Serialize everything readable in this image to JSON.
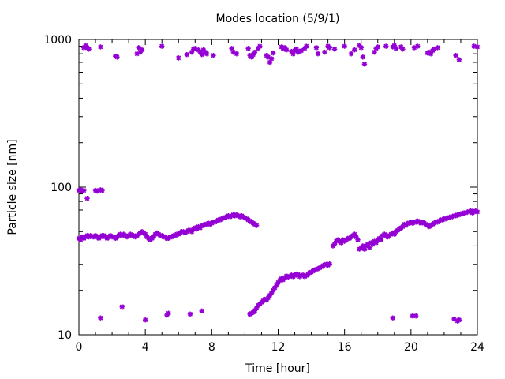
{
  "chart_data": {
    "type": "scatter",
    "title": "Modes location (5/9/1)",
    "xlabel": "Time [hour]",
    "ylabel": "Particle size [nm]",
    "xlim": [
      0,
      24
    ],
    "ylim": [
      10,
      1000
    ],
    "yscale": "log",
    "grid": false,
    "legend": "none",
    "x_ticks": [
      0,
      4,
      8,
      12,
      16,
      20,
      24
    ],
    "x_tick_labels": [
      "0",
      "4",
      "8",
      "12",
      "16",
      "20",
      "24"
    ],
    "y_ticks": [
      10,
      100,
      1000
    ],
    "y_tick_labels": [
      "10",
      "100",
      "1000"
    ],
    "marker_color": "#9400d3",
    "series": [
      {
        "x": [
          0.0,
          0.1,
          0.2,
          0.3,
          0.4,
          0.5,
          0.6,
          0.7,
          0.8,
          0.9,
          1.0,
          1.1,
          1.2,
          1.3,
          1.4,
          1.5,
          1.6,
          1.7,
          1.8,
          1.9,
          2.0,
          2.1,
          2.2,
          2.3,
          2.4,
          2.5,
          2.6,
          2.7,
          2.8,
          2.9,
          3.0,
          3.1,
          3.2,
          3.3,
          3.4,
          3.5,
          3.6,
          3.7,
          3.8,
          3.9,
          4.0,
          4.1,
          4.2,
          4.3,
          4.4,
          4.5,
          4.6,
          4.7,
          4.8,
          4.9,
          5.0,
          5.1,
          5.2,
          5.3,
          5.4,
          5.5,
          5.6,
          5.7,
          5.8,
          5.9,
          6.0,
          6.1,
          6.2,
          6.3,
          6.4,
          6.5,
          6.6,
          6.7,
          6.8,
          6.9,
          7.0,
          7.1,
          7.2,
          7.3,
          7.4,
          7.5,
          7.6,
          7.7,
          7.8,
          7.9,
          8.0,
          8.1,
          8.2,
          8.3,
          8.4,
          8.5,
          8.6,
          8.7,
          8.8,
          8.9,
          9.0,
          9.1,
          9.2,
          9.3,
          9.4,
          9.5,
          9.6,
          9.7,
          9.8,
          9.9,
          10.0,
          10.1,
          10.2,
          10.3,
          10.4,
          10.5,
          10.6,
          10.7
        ],
        "y": [
          45,
          44,
          46,
          45,
          46,
          47,
          46,
          47,
          46,
          46,
          47,
          46,
          45,
          46,
          47,
          47,
          46,
          45,
          46,
          47,
          46,
          46,
          45,
          46,
          47,
          48,
          47,
          48,
          47,
          46,
          47,
          48,
          47,
          47,
          46,
          47,
          48,
          49,
          50,
          49,
          48,
          46,
          45,
          44,
          45,
          46,
          48,
          49,
          48,
          47,
          47,
          46,
          46,
          45,
          45,
          46,
          46,
          47,
          47,
          48,
          48,
          49,
          50,
          50,
          49,
          50,
          51,
          51,
          50,
          52,
          53,
          52,
          54,
          53,
          55,
          55,
          56,
          56,
          57,
          56,
          57,
          58,
          58,
          59,
          60,
          60,
          61,
          62,
          62,
          63,
          64,
          63,
          64,
          65,
          64,
          65,
          64,
          63,
          64,
          63,
          62,
          61,
          60,
          59,
          58,
          57,
          56,
          55
        ]
      },
      {
        "x": [
          10.3,
          10.4,
          10.5,
          10.6,
          10.7,
          10.8,
          10.9,
          11.0,
          11.1,
          11.2,
          11.3,
          11.4,
          11.5,
          11.6,
          11.7,
          11.8,
          11.9,
          12.0,
          12.1,
          12.2,
          12.3,
          12.4,
          12.5,
          12.6,
          12.7,
          12.8,
          12.9,
          13.0,
          13.1,
          13.2,
          13.3,
          13.4,
          13.5,
          13.6,
          13.7,
          13.8,
          13.9,
          14.0,
          14.1,
          14.2,
          14.3,
          14.4,
          14.5,
          14.6,
          14.7,
          14.8,
          14.9,
          15.0,
          15.1
        ],
        "y": [
          13.8,
          14,
          14.2,
          14.6,
          15.2,
          15.8,
          16.2,
          16.6,
          17,
          17.4,
          17.2,
          17.8,
          18.5,
          19.2,
          20,
          20.8,
          21.6,
          22.6,
          23.4,
          24,
          23.6,
          24.4,
          25,
          24.6,
          24.8,
          25.4,
          24.8,
          25.2,
          25.8,
          25.6,
          24.8,
          25.2,
          25.4,
          24.8,
          25.2,
          25.6,
          26.4,
          26.6,
          27,
          27.4,
          27.8,
          28,
          28.4,
          28.8,
          29.4,
          29.8,
          30,
          29.6,
          30.2
        ]
      },
      {
        "x": [
          15.3,
          15.4,
          15.5,
          15.6,
          15.7,
          15.8,
          15.9,
          16.0,
          16.1,
          16.2,
          16.3,
          16.4,
          16.5,
          16.6,
          16.7,
          16.8,
          16.9,
          17.0,
          17.1,
          17.2,
          17.3,
          17.4,
          17.5,
          17.6,
          17.7,
          17.8,
          17.9,
          18.0,
          18.1,
          18.2,
          18.3,
          18.4,
          18.5,
          18.6,
          18.7,
          18.8,
          18.9,
          19.0,
          19.1,
          19.2,
          19.3,
          19.4,
          19.5,
          19.6,
          19.7,
          19.8,
          19.9,
          20.0,
          20.1,
          20.2,
          20.3,
          20.4,
          20.5,
          20.6,
          20.7,
          20.8,
          20.9,
          21.0,
          21.1,
          21.2,
          21.3,
          21.4,
          21.5,
          21.6,
          21.7,
          21.8,
          21.9,
          22.0,
          22.1,
          22.2,
          22.3,
          22.4,
          22.5,
          22.6,
          22.7,
          22.8,
          22.9,
          23.0,
          23.1,
          23.2,
          23.3,
          23.4,
          23.5,
          23.6,
          23.7,
          23.8,
          23.9,
          24.0
        ],
        "y": [
          40,
          41,
          43,
          44,
          43,
          42,
          44,
          43,
          44,
          45,
          45,
          46,
          47,
          48,
          46,
          44,
          38,
          39,
          40,
          38,
          40,
          41,
          39,
          42,
          41,
          43,
          42,
          44,
          45,
          44,
          47,
          48,
          47,
          46,
          47,
          48,
          49,
          48,
          50,
          51,
          52,
          53,
          54,
          56,
          55,
          57,
          57,
          58,
          57,
          58,
          58,
          59,
          58,
          57,
          58,
          57,
          56,
          55,
          54,
          55,
          56,
          57,
          58,
          58,
          59,
          60,
          60,
          61,
          61,
          62,
          62,
          63,
          63,
          64,
          64,
          65,
          65,
          66,
          66,
          67,
          67,
          68,
          68,
          69,
          67,
          68,
          69,
          68
        ]
      },
      {
        "x": [
          0.0,
          0.1,
          0.2,
          0.3,
          0.5,
          1.0,
          1.1,
          1.2,
          1.3,
          1.4
        ],
        "y": [
          95,
          96,
          94,
          95,
          84,
          95,
          94,
          95,
          96,
          95
        ]
      },
      {
        "x": [
          1.3,
          2.6,
          4.0,
          5.3,
          5.4,
          6.7,
          7.4,
          10.3,
          18.9,
          20.1,
          20.3,
          22.6,
          22.8,
          22.9
        ],
        "y": [
          13,
          15.5,
          12.6,
          13.6,
          14,
          13.8,
          14.5,
          13.8,
          13,
          13.4,
          13.4,
          12.8,
          12.4,
          12.6
        ]
      },
      {
        "x": [
          0.3,
          0.4,
          0.5,
          0.6,
          1.3,
          2.2,
          2.3,
          3.5,
          3.6,
          3.7,
          3.8,
          5.0,
          6.0,
          6.5,
          6.8,
          6.9,
          7.0,
          7.2,
          7.3,
          7.4,
          7.5,
          7.6,
          7.7,
          8.1,
          9.2,
          9.3,
          9.5,
          10.2,
          10.3,
          10.4,
          10.5,
          10.6,
          10.8,
          10.9,
          11.3,
          11.4,
          11.5,
          11.6,
          11.7,
          12.2,
          12.3,
          12.4,
          12.5,
          12.8,
          12.9,
          13.0,
          13.1,
          13.2,
          13.3,
          13.4,
          13.6,
          13.7,
          14.3,
          14.4,
          14.8,
          15.0,
          15.1,
          15.4,
          16.0,
          16.4,
          16.6,
          16.9,
          17.0,
          17.1,
          17.2,
          17.8,
          17.9,
          18.0,
          18.5,
          18.9,
          19.0,
          19.1,
          19.4,
          19.5,
          20.2,
          20.4,
          21.0,
          21.1,
          21.2,
          21.3,
          21.4,
          21.6,
          22.7,
          22.9,
          23.8,
          24.0
        ],
        "y": [
          880,
          910,
          880,
          860,
          890,
          770,
          760,
          800,
          880,
          820,
          850,
          900,
          750,
          790,
          820,
          860,
          870,
          850,
          820,
          790,
          850,
          820,
          800,
          780,
          870,
          820,
          800,
          870,
          780,
          760,
          790,
          820,
          870,
          900,
          780,
          760,
          700,
          740,
          810,
          890,
          870,
          880,
          850,
          830,
          800,
          840,
          860,
          820,
          830,
          840,
          870,
          900,
          880,
          800,
          820,
          900,
          880,
          860,
          900,
          800,
          850,
          910,
          880,
          760,
          680,
          820,
          870,
          890,
          900,
          890,
          910,
          870,
          890,
          860,
          880,
          900,
          810,
          820,
          800,
          840,
          860,
          880,
          780,
          730,
          900,
          890
        ]
      }
    ]
  }
}
